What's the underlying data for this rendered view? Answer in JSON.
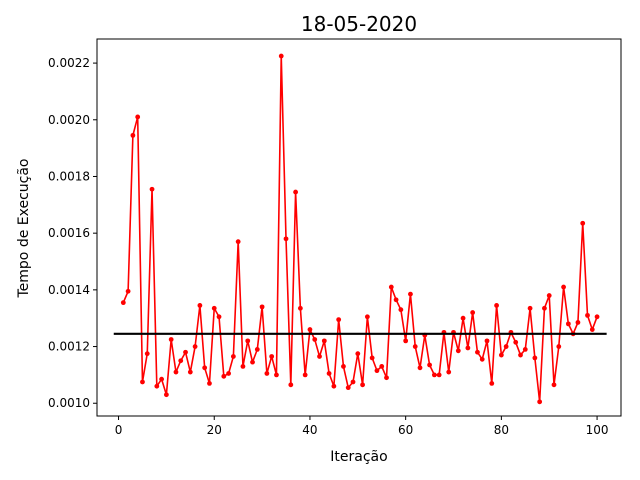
{
  "chart_data": {
    "type": "line",
    "title": "18-05-2020",
    "xlabel": "Iteração",
    "ylabel": "Tempo de Execução",
    "xlim": [
      -4.5,
      105
    ],
    "ylim": [
      0.000955,
      0.002285
    ],
    "x_ticks": [
      0,
      20,
      40,
      60,
      80,
      100
    ],
    "y_ticks": [
      0.001,
      0.0012,
      0.0014,
      0.0016,
      0.0018,
      0.002,
      0.0022
    ],
    "y_tick_labels": [
      "0.0010",
      "0.0012",
      "0.0014",
      "0.0016",
      "0.0018",
      "0.0020",
      "0.0022"
    ],
    "grid": false,
    "series": [
      {
        "color": "#ff0000",
        "marker": "circle",
        "x_start": 1,
        "values": [
          0.001355,
          0.001395,
          0.001945,
          0.00201,
          0.001075,
          0.001175,
          0.001755,
          0.00106,
          0.001085,
          0.00103,
          0.001225,
          0.00111,
          0.00115,
          0.00118,
          0.00111,
          0.0012,
          0.001345,
          0.001125,
          0.00107,
          0.001335,
          0.001305,
          0.001095,
          0.001105,
          0.001165,
          0.00157,
          0.00113,
          0.00122,
          0.001145,
          0.00119,
          0.00134,
          0.001105,
          0.001165,
          0.0011,
          0.002225,
          0.00158,
          0.001065,
          0.001745,
          0.001335,
          0.0011,
          0.00126,
          0.001225,
          0.001165,
          0.00122,
          0.001105,
          0.00106,
          0.001295,
          0.00113,
          0.001055,
          0.001075,
          0.001175,
          0.001065,
          0.001305,
          0.00116,
          0.001115,
          0.00113,
          0.00109,
          0.00141,
          0.001365,
          0.00133,
          0.00122,
          0.001385,
          0.0012,
          0.001125,
          0.00124,
          0.001135,
          0.0011,
          0.0011,
          0.00125,
          0.00111,
          0.00125,
          0.001185,
          0.0013,
          0.001195,
          0.00132,
          0.00118,
          0.001155,
          0.00122,
          0.00107,
          0.001345,
          0.00117,
          0.0012,
          0.00125,
          0.001215,
          0.00117,
          0.00119,
          0.001335,
          0.00116,
          0.001005,
          0.001335,
          0.00138,
          0.001065,
          0.0012,
          0.00141,
          0.00128,
          0.001245,
          0.001285,
          0.001635,
          0.00131,
          0.00126,
          0.001305
        ]
      },
      {
        "color": "#000000",
        "marker": "none",
        "x": [
          -1,
          102
        ],
        "values": [
          0.001245,
          0.001245
        ]
      }
    ]
  }
}
